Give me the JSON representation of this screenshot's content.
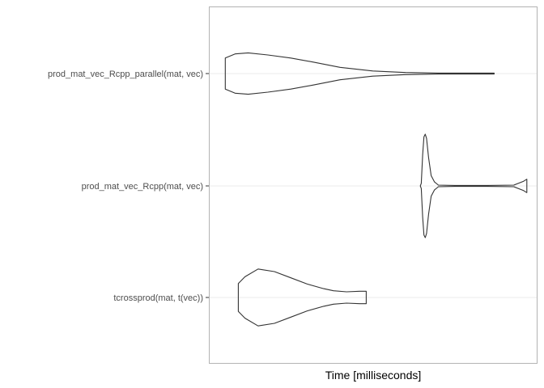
{
  "chart_data": {
    "type": "violin",
    "orientation": "horizontal",
    "xlabel": "Time [milliseconds]",
    "ylabel": "",
    "grid": true,
    "legend": "none",
    "categories": [
      "prod_mat_vec_Rcpp_parallel(mat, vec)",
      "prod_mat_vec_Rcpp(mat, vec)",
      "tcrossprod(mat, t(vec))"
    ],
    "series": [
      {
        "category": "prod_mat_vec_Rcpp_parallel(mat, vec)",
        "min": 0.05,
        "max": 0.87,
        "density": [
          [
            0.05,
            0.3
          ],
          [
            0.08,
            0.38
          ],
          [
            0.12,
            0.4
          ],
          [
            0.18,
            0.36
          ],
          [
            0.25,
            0.3
          ],
          [
            0.32,
            0.22
          ],
          [
            0.4,
            0.12
          ],
          [
            0.5,
            0.05
          ],
          [
            0.6,
            0.02
          ],
          [
            0.7,
            0.01
          ],
          [
            0.8,
            0.01
          ],
          [
            0.87,
            0.01
          ]
        ]
      },
      {
        "category": "prod_mat_vec_Rcpp(mat, vec)",
        "min": 0.645,
        "max": 0.97,
        "density": [
          [
            0.645,
            0.0
          ],
          [
            0.648,
            0.05
          ],
          [
            0.652,
            0.6
          ],
          [
            0.656,
            0.95
          ],
          [
            0.66,
            1.0
          ],
          [
            0.664,
            0.92
          ],
          [
            0.67,
            0.55
          ],
          [
            0.678,
            0.2
          ],
          [
            0.688,
            0.08
          ],
          [
            0.7,
            0.015
          ],
          [
            0.75,
            0.01
          ],
          [
            0.85,
            0.01
          ],
          [
            0.93,
            0.015
          ],
          [
            0.96,
            0.09
          ],
          [
            0.97,
            0.13
          ]
        ]
      },
      {
        "category": "tcrossprod(mat, t(vec))",
        "min": 0.09,
        "max": 0.48,
        "density": [
          [
            0.09,
            0.27
          ],
          [
            0.11,
            0.4
          ],
          [
            0.15,
            0.55
          ],
          [
            0.2,
            0.5
          ],
          [
            0.25,
            0.38
          ],
          [
            0.3,
            0.26
          ],
          [
            0.35,
            0.17
          ],
          [
            0.38,
            0.13
          ],
          [
            0.42,
            0.11
          ],
          [
            0.46,
            0.12
          ],
          [
            0.48,
            0.12
          ]
        ]
      }
    ]
  }
}
